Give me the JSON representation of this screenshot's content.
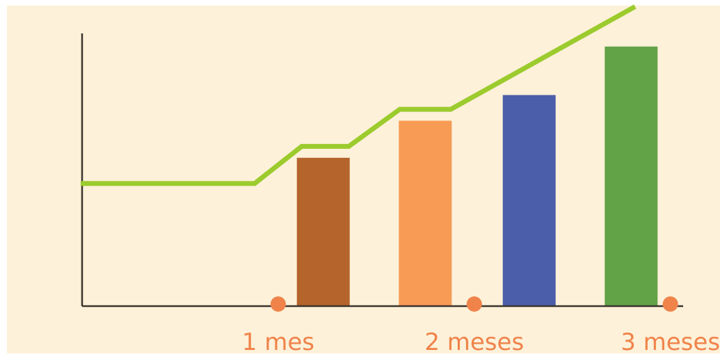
{
  "colors": {
    "panel_background": "#fdf1d9",
    "axis": "#3b342e",
    "line": "#9ccb2e",
    "marker": "#f0834a",
    "label": "#f0834a"
  },
  "chart_data": {
    "type": "bar",
    "title": "",
    "xlabel": "",
    "ylabel": "",
    "x_ticks": [
      {
        "label": "1 mes",
        "x": 1
      },
      {
        "label": "2 meses",
        "x": 2
      },
      {
        "label": "3 meses",
        "x": 3
      }
    ],
    "bars": [
      {
        "x": 1.23,
        "value": 5.2,
        "color": "#b5652c"
      },
      {
        "x": 1.75,
        "value": 6.5,
        "color": "#f79b55"
      },
      {
        "x": 2.28,
        "value": 7.4,
        "color": "#4a5eaa"
      },
      {
        "x": 2.8,
        "value": 9.1,
        "color": "#62a347"
      }
    ],
    "line_series": {
      "points": [
        {
          "x": 0,
          "y": 4.3
        },
        {
          "x": 0.88,
          "y": 4.3
        },
        {
          "x": 1.12,
          "y": 5.6
        },
        {
          "x": 1.36,
          "y": 5.6
        },
        {
          "x": 1.62,
          "y": 6.9
        },
        {
          "x": 1.88,
          "y": 6.9
        },
        {
          "x": 2.82,
          "y": 10.5
        }
      ]
    },
    "xlim": [
      0,
      3.2
    ],
    "ylim": [
      0,
      10
    ]
  }
}
